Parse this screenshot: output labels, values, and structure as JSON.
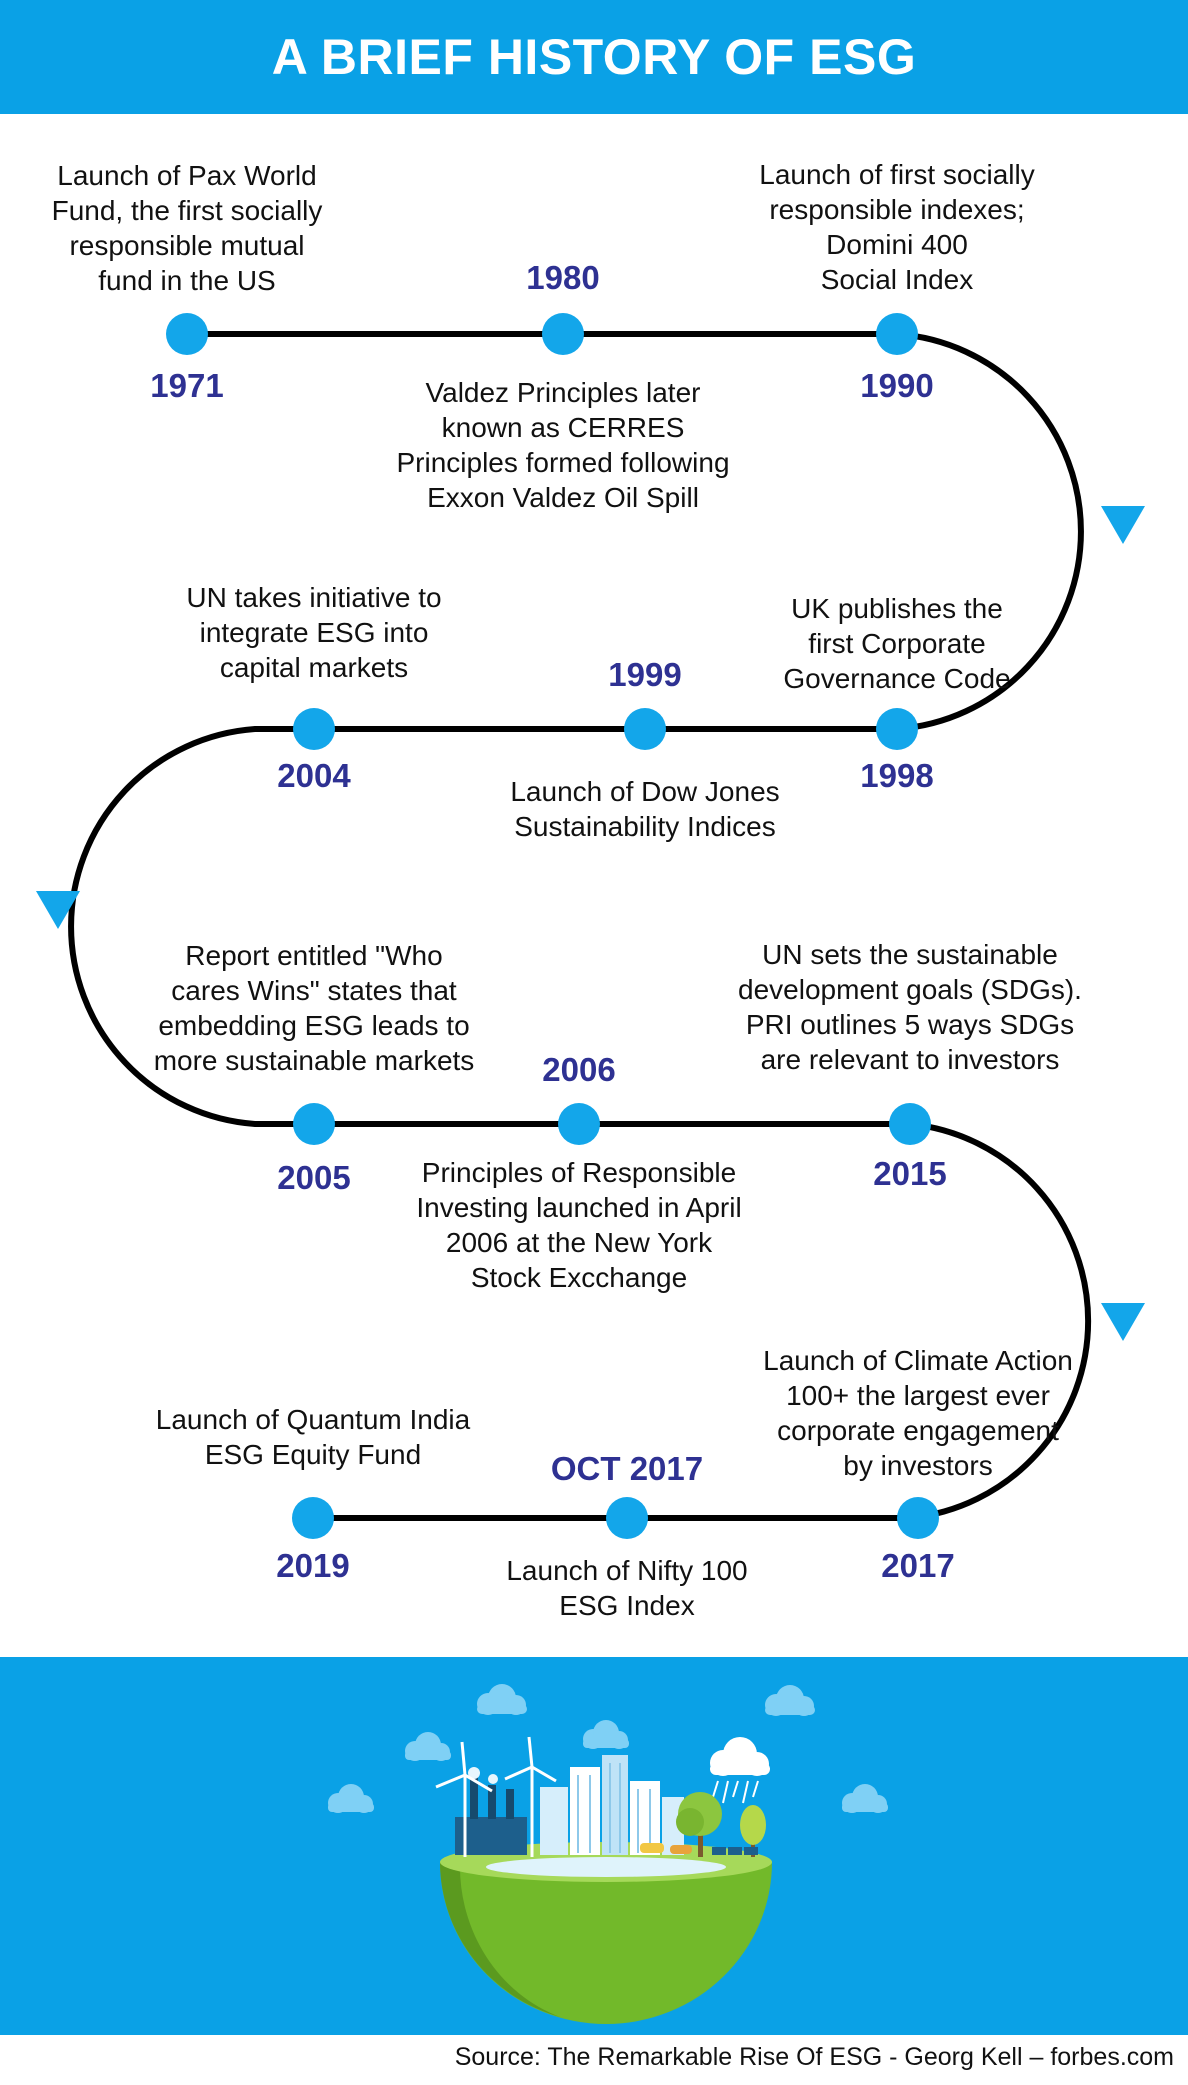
{
  "title": "A BRIEF HISTORY OF ESG",
  "source": "Source: The Remarkable Rise Of ESG - Georg Kell – forbes.com",
  "colors": {
    "band": "#0aa1e6",
    "node": "#13a6ea",
    "year": "#2e3192",
    "line": "#000000"
  },
  "events": [
    {
      "year": "1971",
      "lines": [
        "Launch of Pax World",
        "Fund, the first socially",
        "responsible mutual",
        "fund in the US"
      ]
    },
    {
      "year": "1980",
      "lines": [
        "Valdez Principles later",
        "known as CERRES",
        "Principles formed following",
        "Exxon Valdez Oil Spill"
      ]
    },
    {
      "year": "1990",
      "lines": [
        "Launch of first socially",
        "responsible indexes;",
        "Domini 400",
        "Social Index"
      ]
    },
    {
      "year": "1998",
      "lines": [
        "UK publishes the",
        "first Corporate",
        "Governance Code"
      ]
    },
    {
      "year": "1999",
      "lines": [
        "Launch of Dow Jones",
        "Sustainability Indices"
      ]
    },
    {
      "year": "2004",
      "lines": [
        "UN takes initiative to",
        "integrate ESG into",
        "capital markets"
      ]
    },
    {
      "year": "2005",
      "lines": [
        "Report entitled \"Who",
        "cares Wins\" states that",
        "embedding ESG leads to",
        "more sustainable markets"
      ]
    },
    {
      "year": "2006",
      "lines": [
        "Principles  of Responsible",
        "Investing launched in April",
        "2006 at the New York",
        "Stock Excchange"
      ]
    },
    {
      "year": "2015",
      "lines": [
        "UN sets the sustainable",
        "development goals (SDGs).",
        "PRI outlines 5 ways SDGs",
        "are relevant to investors"
      ]
    },
    {
      "year": "2017",
      "lines": [
        "Launch of Climate Action",
        "100+ the largest ever",
        "corporate engagement",
        "by investors"
      ]
    },
    {
      "year": "OCT 2017",
      "lines": [
        "Launch of Nifty 100",
        "ESG Index"
      ]
    },
    {
      "year": "2019",
      "lines": [
        "Launch of Quantum India",
        "ESG Equity Fund"
      ]
    }
  ]
}
